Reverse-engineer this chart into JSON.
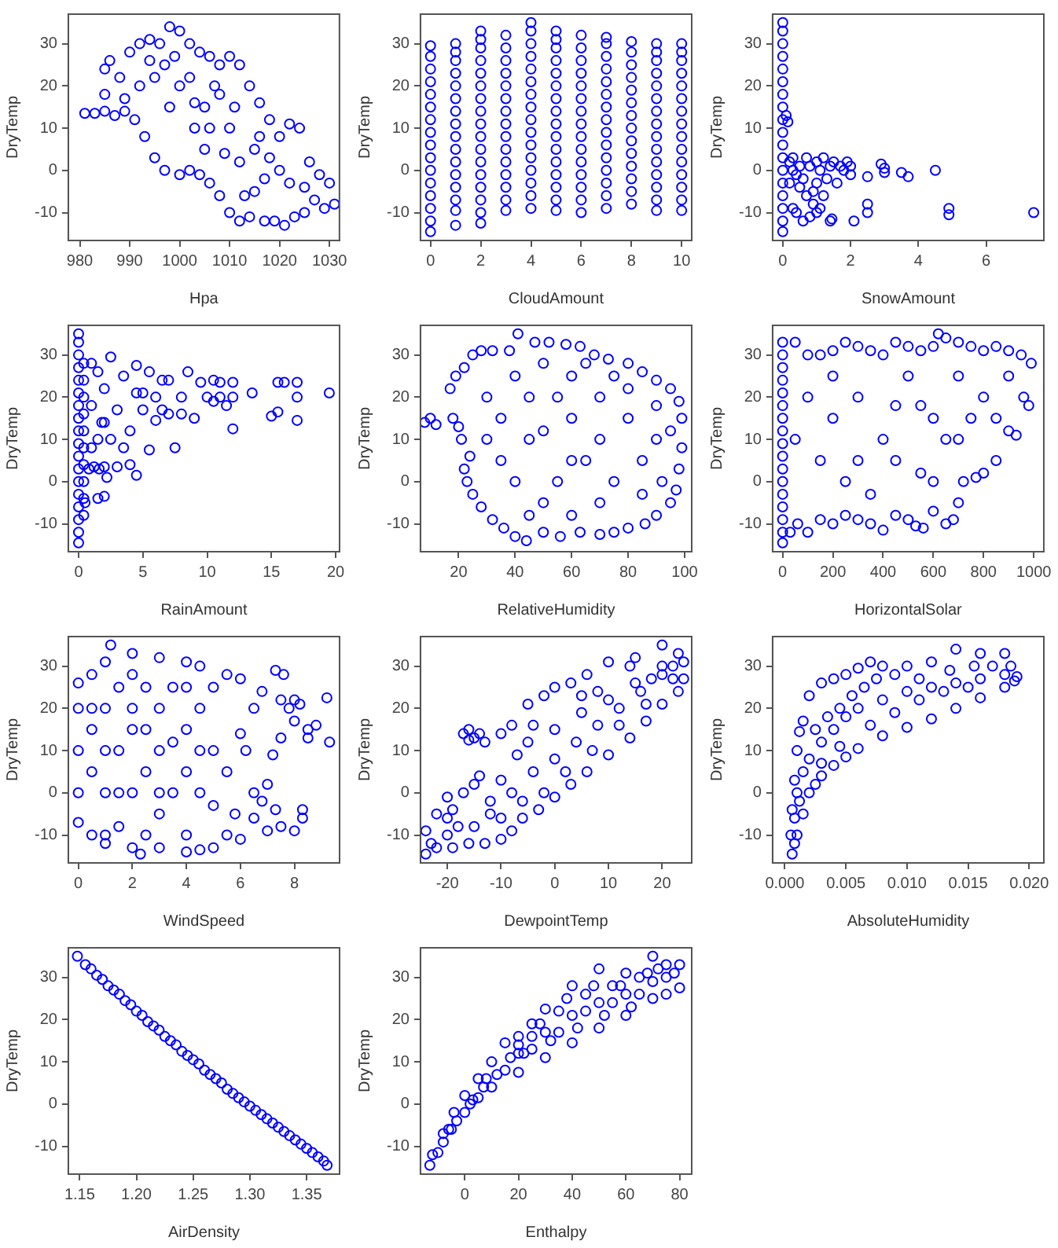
{
  "chart_data": [
    {
      "type": "scatter",
      "xlabel": "Hpa",
      "ylabel": "DryTemp",
      "xlim": [
        977.7,
        1032
      ],
      "ylim": [
        -16.6,
        37
      ],
      "xticks": [
        980,
        990,
        1000,
        1010,
        1020,
        1030
      ],
      "yticks": [
        -10,
        0,
        10,
        20,
        30
      ],
      "marker": "circle",
      "color": "#0000ff",
      "x": [
        981,
        983,
        985,
        987,
        985,
        985,
        986,
        988,
        989,
        990,
        992,
        994,
        996,
        998,
        1000,
        1002,
        1004,
        1006,
        1008,
        1010,
        1012,
        1014,
        1016,
        1018,
        1020,
        1022,
        1024,
        1026,
        1028,
        1030,
        1031,
        1029,
        1027,
        1025,
        1023,
        1021,
        1019,
        1017,
        1014,
        1012,
        1010,
        1008,
        1006,
        1004,
        1002,
        1000,
        997,
        995,
        993,
        991,
        989,
        1000,
        1005,
        1010,
        1015,
        1020,
        995,
        1003,
        1012,
        1008,
        998,
        1015,
        1005,
        1025,
        992,
        997,
        1002,
        1007,
        1011,
        1016,
        1018,
        1022,
        1013,
        1009,
        1003,
        999,
        994,
        1006,
        1017
      ],
      "values": [
        13.5,
        13.5,
        14,
        13,
        18,
        24,
        26,
        22,
        17,
        28,
        30,
        31,
        30,
        34,
        33,
        30,
        28,
        27,
        25,
        27,
        25,
        20,
        16,
        12,
        8,
        11,
        10,
        2,
        -1,
        -3,
        -8,
        -9,
        -7,
        -10,
        -11,
        -13,
        -12,
        -12,
        -11,
        -12,
        -10,
        -6,
        -3,
        -1,
        0,
        -1,
        0,
        3,
        8,
        12,
        14,
        20,
        15,
        10,
        5,
        0,
        22,
        10,
        2,
        18,
        15,
        -5,
        5,
        -4,
        20,
        25,
        22,
        20,
        15,
        8,
        3,
        -3,
        -6,
        4,
        16,
        27,
        26,
        10,
        -2
      ]
    },
    {
      "type": "scatter",
      "xlabel": "CloudAmount",
      "ylabel": "DryTemp",
      "xlim": [
        -0.4,
        10.4
      ],
      "ylim": [
        -16.6,
        37
      ],
      "xticks": [
        0,
        2,
        4,
        6,
        8,
        10
      ],
      "yticks": [
        -10,
        0,
        10,
        20,
        30
      ],
      "marker": "circle",
      "color": "#0000ff",
      "x": [
        0,
        0,
        0,
        0,
        0,
        0,
        0,
        0,
        0,
        0,
        0,
        0,
        0,
        0,
        0,
        0,
        1,
        1,
        1,
        1,
        1,
        1,
        1,
        1,
        1,
        1,
        1,
        1,
        1,
        1,
        1,
        1,
        2,
        2,
        2,
        2,
        2,
        2,
        2,
        2,
        2,
        2,
        2,
        2,
        2,
        2,
        2,
        2,
        2,
        3,
        3,
        3,
        3,
        3,
        3,
        3,
        3,
        3,
        3,
        3,
        3,
        3,
        3,
        3,
        4,
        4,
        4,
        4,
        4,
        4,
        4,
        4,
        4,
        4,
        4,
        4,
        4,
        4,
        4,
        4,
        5,
        5,
        5,
        5,
        5,
        5,
        5,
        5,
        5,
        5,
        5,
        5,
        5,
        5,
        5,
        5,
        6,
        6,
        6,
        6,
        6,
        6,
        6,
        6,
        6,
        6,
        6,
        6,
        6,
        6,
        6,
        7,
        7,
        7,
        7,
        7,
        7,
        7,
        7,
        7,
        7,
        7,
        7,
        7,
        7,
        7,
        8,
        8,
        8,
        8,
        8,
        8,
        8,
        8,
        8,
        8,
        8,
        8,
        8,
        8,
        9,
        9,
        9,
        9,
        9,
        9,
        9,
        9,
        9,
        9,
        9,
        9,
        9,
        9,
        9,
        10,
        10,
        10,
        10,
        10,
        10,
        10,
        10,
        10,
        10,
        10,
        10,
        10,
        10,
        10
      ],
      "values": [
        -14.5,
        -12,
        -9,
        -6,
        -3,
        0,
        3,
        6,
        9,
        12,
        15,
        18,
        21,
        24,
        27,
        29.5,
        -13,
        -9.5,
        -7,
        -4,
        -1,
        2,
        5,
        8,
        11,
        14,
        17,
        20,
        23,
        26,
        28,
        30,
        -12.5,
        -10,
        -7,
        -4,
        -1,
        2,
        5,
        8,
        11,
        14,
        17,
        20,
        23,
        26,
        29,
        31,
        33,
        -9.5,
        -7,
        -4,
        -1,
        2,
        5,
        8,
        11,
        14,
        17,
        20,
        23,
        26,
        29,
        32,
        -9,
        -6,
        -3,
        0,
        3,
        6,
        9,
        12,
        15,
        18,
        21,
        24,
        27,
        30,
        33,
        35,
        -9.5,
        -7,
        -4,
        -1,
        2,
        5,
        8,
        11,
        14,
        17,
        20,
        23,
        26,
        29,
        31,
        33,
        -10,
        -7,
        -4,
        -1,
        2,
        5,
        8,
        11,
        14,
        17,
        20,
        23,
        26,
        29,
        32,
        -9,
        -6,
        -3,
        0,
        3,
        6,
        9,
        12,
        15,
        18,
        21,
        24,
        27,
        30,
        31.5,
        -8,
        -5,
        -2,
        1,
        4,
        7,
        10,
        13,
        16,
        19,
        22,
        25,
        28,
        30.5,
        -9.5,
        -7,
        -4,
        -1,
        2,
        5,
        8,
        11,
        14,
        17,
        20,
        23,
        26,
        28,
        30,
        -9.5,
        -7,
        -4,
        -1,
        2,
        5,
        8,
        11,
        14,
        17,
        20,
        23,
        26,
        28,
        30
      ]
    },
    {
      "type": "scatter",
      "xlabel": "SnowAmount",
      "ylabel": "DryTemp",
      "xlim": [
        -0.3,
        7.7
      ],
      "ylim": [
        -16.6,
        37
      ],
      "xticks": [
        0,
        2,
        4,
        6
      ],
      "yticks": [
        -10,
        0,
        10,
        20,
        30
      ],
      "marker": "circle",
      "color": "#0000ff",
      "x": [
        0,
        0,
        0,
        0,
        0,
        0,
        0,
        0,
        0,
        0,
        0,
        0,
        0,
        0,
        0,
        0,
        0,
        0,
        0.1,
        0.15,
        0.2,
        0.3,
        0.4,
        0.5,
        0.5,
        0.6,
        0.7,
        0.7,
        0.8,
        0.8,
        0.9,
        1,
        1,
        1.1,
        1.1,
        1.2,
        1.3,
        1.4,
        1.4,
        1.5,
        1.6,
        1.7,
        1.9,
        2,
        2.1,
        0.3,
        0.4,
        0.9,
        1.2,
        0.6,
        1,
        1.45,
        1.8,
        2,
        0.2,
        0.3,
        2.5,
        2.5,
        2.5,
        2.9,
        3,
        3,
        3.5,
        3.7,
        4.5,
        4.9,
        4.9,
        7.4
      ],
      "values": [
        -14.5,
        -12,
        -9,
        -6,
        -3,
        0,
        3,
        6,
        9,
        12,
        15,
        18,
        21,
        24,
        27,
        30,
        33,
        35,
        13,
        11.5,
        2,
        -9,
        -10,
        1,
        -4,
        -2,
        3,
        -6,
        -11,
        1,
        -8,
        2,
        -3,
        -9,
        0,
        3,
        -2,
        -12,
        1,
        2,
        -3,
        1,
        2,
        1,
        -12,
        3,
        -1,
        -5,
        -6,
        -12,
        -10,
        -11.5,
        0,
        -1,
        -3,
        0,
        -1.5,
        -8,
        -10,
        1.5,
        -0.5,
        0.5,
        -0.5,
        -1.5,
        0,
        -9,
        -10.5,
        -10
      ]
    },
    {
      "type": "scatter",
      "xlabel": "RainAmount",
      "ylabel": "DryTemp",
      "xlim": [
        -0.8,
        20.3
      ],
      "ylim": [
        -16.6,
        37
      ],
      "xticks": [
        0,
        5,
        10,
        15,
        20
      ],
      "yticks": [
        -10,
        0,
        10,
        20,
        30
      ],
      "marker": "circle",
      "color": "#0000ff",
      "x": [
        0,
        0,
        0,
        0,
        0,
        0,
        0,
        0,
        0,
        0,
        0,
        0,
        0,
        0,
        0,
        0,
        0,
        0,
        0.4,
        0.4,
        0.4,
        0.4,
        0.4,
        0.4,
        0.4,
        0.4,
        0.4,
        0.4,
        0.8,
        1.2,
        1.6,
        2,
        19.5,
        17,
        17,
        17,
        16,
        15.5,
        15.5,
        15,
        13.5,
        12,
        12,
        12,
        11.5,
        11,
        11,
        10.5,
        10,
        9.5,
        8.5,
        8,
        8,
        7.5,
        7,
        6.5,
        6,
        6,
        5.5,
        5,
        4.5,
        4.5,
        4,
        4,
        3.5,
        3,
        3,
        2.5,
        2.5,
        2,
        1.5,
        1.5,
        1,
        0.5,
        2,
        3.5,
        5,
        2.2,
        1.8,
        6.5,
        9,
        10.5,
        4.5,
        7,
        5.5,
        1,
        1.5,
        2,
        1
      ],
      "values": [
        -14.5,
        -12,
        -9,
        -6,
        -3,
        0,
        3,
        6,
        9,
        12,
        15,
        18,
        21,
        24,
        27,
        30,
        33,
        35,
        -8,
        -4,
        0,
        4,
        8,
        12,
        16,
        20,
        24,
        28,
        3,
        3.5,
        3,
        3.5,
        21,
        23.5,
        20,
        14.5,
        23.5,
        23.5,
        16.5,
        15.5,
        21,
        23.5,
        20,
        12.5,
        18,
        23.5,
        20,
        19,
        20,
        23.5,
        26,
        20,
        16,
        8,
        16,
        17,
        20,
        14.5,
        26,
        17,
        27.5,
        1.5,
        12,
        4,
        25,
        17,
        3.5,
        29.5,
        10,
        -3.5,
        26,
        -4,
        28,
        -5,
        22,
        8,
        21,
        1,
        14,
        24,
        15,
        24,
        21,
        24,
        7.5,
        18,
        10,
        14,
        8
      ]
    },
    {
      "type": "scatter",
      "xlabel": "RelativeHumidity",
      "ylabel": "DryTemp",
      "xlim": [
        6.5,
        102.5
      ],
      "ylim": [
        -16.6,
        37
      ],
      "xticks": [
        20,
        40,
        60,
        80,
        100
      ],
      "yticks": [
        -10,
        0,
        10,
        20,
        30
      ],
      "marker": "circle",
      "color": "#0000ff",
      "x": [
        8,
        10,
        12,
        17,
        19,
        22,
        25,
        28,
        32,
        38,
        41,
        47,
        52,
        58,
        63,
        68,
        73,
        80,
        85,
        90,
        95,
        98,
        99,
        99,
        98,
        97,
        95,
        90,
        86,
        80,
        75,
        70,
        63,
        56,
        50,
        44,
        40,
        36,
        32,
        28,
        25,
        23,
        22,
        24,
        21,
        20,
        18,
        30,
        40,
        50,
        60,
        70,
        80,
        90,
        35,
        45,
        55,
        65,
        75,
        85,
        50,
        60,
        70,
        40,
        30,
        90,
        95,
        60,
        75,
        45,
        85,
        55,
        65,
        35,
        50,
        80,
        70,
        45,
        60,
        92
      ],
      "values": [
        14,
        15,
        13.5,
        22,
        25,
        27,
        30,
        31,
        31,
        31,
        35,
        33,
        33,
        32.5,
        32,
        30,
        29,
        28,
        26,
        24,
        22,
        19,
        15,
        8,
        3,
        -2,
        -5,
        -8,
        -10,
        -11,
        -12,
        -12.5,
        -12,
        -13,
        -12,
        -14,
        -13,
        -11,
        -9,
        -6,
        -3,
        0,
        3,
        6,
        10,
        13,
        15,
        20,
        25,
        28,
        25,
        20,
        15,
        10,
        5,
        10,
        0,
        5,
        0,
        5,
        -5,
        -8,
        -5,
        0,
        10,
        18,
        12,
        15,
        25,
        20,
        -3,
        20,
        28,
        15,
        12,
        22,
        10,
        -8,
        5,
        0
      ]
    },
    {
      "type": "scatter",
      "xlabel": "HorizontalSolar",
      "ylabel": "DryTemp",
      "xlim": [
        -40,
        1040
      ],
      "ylim": [
        -16.6,
        37
      ],
      "xticks": [
        0,
        200,
        400,
        600,
        800,
        1000
      ],
      "yticks": [
        -10,
        0,
        10,
        20,
        30
      ],
      "marker": "circle",
      "color": "#0000ff",
      "x": [
        0,
        0,
        0,
        0,
        0,
        0,
        0,
        0,
        0,
        0,
        0,
        0,
        0,
        0,
        0,
        0,
        0,
        30,
        60,
        100,
        150,
        200,
        250,
        300,
        350,
        400,
        450,
        500,
        530,
        560,
        600,
        650,
        680,
        700,
        720,
        770,
        800,
        850,
        900,
        930,
        960,
        980,
        990,
        950,
        900,
        850,
        800,
        750,
        700,
        650,
        620,
        600,
        550,
        500,
        450,
        400,
        350,
        300,
        250,
        200,
        150,
        100,
        50,
        200,
        300,
        400,
        500,
        600,
        700,
        800,
        900,
        150,
        250,
        350,
        450,
        550,
        650,
        750,
        850,
        100,
        550,
        450,
        300,
        600,
        200,
        700,
        50
      ],
      "values": [
        -14.5,
        -12,
        -9,
        -6,
        -3,
        0,
        3,
        6,
        9,
        12,
        15,
        18,
        21,
        24,
        27,
        30,
        33,
        -12,
        -10,
        -12,
        -9,
        -10,
        -8,
        -9,
        -10,
        -11.5,
        -8,
        -9,
        -10.5,
        -11,
        -7,
        -10,
        -9,
        -5,
        0,
        1,
        2,
        5,
        12,
        11,
        20,
        18,
        28,
        30,
        31,
        32,
        31,
        32,
        33,
        34,
        35,
        32,
        31,
        32,
        33,
        30,
        31,
        32,
        33,
        31,
        30,
        30,
        33,
        15,
        20,
        10,
        25,
        15,
        25,
        20,
        25,
        5,
        0,
        -3,
        5,
        2,
        10,
        15,
        15,
        20,
        18,
        18,
        5,
        0,
        25,
        10,
        10
      ]
    },
    {
      "type": "scatter",
      "xlabel": "WindSpeed",
      "ylabel": "DryTemp",
      "xlim": [
        -0.37,
        9.67
      ],
      "ylim": [
        -16.6,
        37
      ],
      "xticks": [
        0,
        2,
        4,
        6,
        8
      ],
      "yticks": [
        -10,
        0,
        10,
        20,
        30
      ],
      "marker": "circle",
      "color": "#0000ff",
      "x": [
        0,
        0.5,
        1,
        1.2,
        2,
        3,
        4,
        4.5,
        5.5,
        6,
        0,
        0.5,
        1,
        2,
        2.3,
        3,
        4,
        4.5,
        5,
        5.5,
        6,
        6.5,
        7,
        7.5,
        8,
        8.3,
        8.3,
        7.3,
        6.8,
        7,
        7.5,
        7.5,
        7.3,
        7.6,
        8,
        8.2,
        8.5,
        8.5,
        8.8,
        9.3,
        9.2,
        8,
        6.5,
        6.2,
        6,
        5.5,
        6.5,
        7.8,
        6.8,
        7.2,
        5.8,
        0,
        0,
        0,
        0.5,
        0.5,
        1,
        1,
        1.5,
        1.5,
        1.5,
        2,
        2,
        2.5,
        2.5,
        2.5,
        3,
        3,
        3,
        3.5,
        3.5,
        4,
        4,
        4,
        4.5,
        4.5,
        5,
        5,
        5,
        1,
        2,
        1,
        2,
        3,
        4,
        3.5,
        2.5,
        1.5,
        0.5,
        4.5
      ],
      "values": [
        26,
        28,
        31,
        35,
        33,
        32,
        31,
        30,
        28,
        27,
        -7,
        -10,
        -12,
        -13,
        -14.5,
        -13,
        -14,
        -13.5,
        -13,
        -10,
        -11,
        -6,
        -9,
        -8,
        -9,
        -6,
        -4,
        -4,
        -2,
        2,
        13,
        22,
        29,
        28,
        22,
        21,
        15,
        13,
        16,
        12,
        22.5,
        17,
        20,
        10,
        14,
        5,
        0,
        20,
        24,
        9,
        -5,
        20,
        10,
        0,
        15,
        5,
        20,
        0,
        25,
        10,
        -8,
        15,
        0,
        25,
        5,
        -10,
        20,
        10,
        -5,
        25,
        0,
        15,
        5,
        -10,
        20,
        0,
        10,
        -3,
        25,
        -10,
        28,
        10,
        20,
        0,
        25,
        12,
        15,
        0,
        20,
        10
      ]
    },
    {
      "type": "scatter",
      "xlabel": "DewpointTemp",
      "ylabel": "DryTemp",
      "xlim": [
        -25,
        25.5
      ],
      "ylim": [
        -16.6,
        37
      ],
      "xticks": [
        -20,
        -10,
        0,
        10,
        20
      ],
      "yticks": [
        -10,
        0,
        10,
        20,
        30
      ],
      "marker": "circle",
      "color": "#0000ff",
      "x": [
        -24,
        -22,
        -20,
        -17,
        -15,
        -16,
        -17,
        -15,
        -13,
        -10,
        -8,
        -5,
        -2,
        0,
        3,
        6,
        10,
        15,
        20,
        23,
        24,
        24,
        23,
        20,
        17,
        14,
        10,
        6,
        3,
        0,
        -3,
        -6,
        -8,
        -10,
        -13,
        -16,
        -19,
        -22,
        -24,
        -23,
        -18,
        -12,
        -8,
        -4,
        0,
        4,
        8,
        12,
        16,
        20,
        -10,
        -5,
        0,
        5,
        10,
        15,
        20,
        -15,
        -20,
        -14,
        2,
        7,
        12,
        17,
        22,
        -6,
        -2,
        -12,
        -19,
        -7,
        5,
        14,
        -16,
        -14,
        -4,
        8,
        18,
        22,
        -10,
        -20
      ],
      "values": [
        -9,
        -5,
        -1,
        0,
        2,
        15,
        14,
        13,
        12,
        14,
        16,
        21,
        23,
        25,
        26,
        28,
        31,
        32,
        35,
        33,
        31,
        27,
        24,
        21,
        17,
        13,
        9,
        5,
        2,
        -1,
        -4,
        -6,
        -9,
        -11,
        -12,
        -12,
        -13,
        -13,
        -14.5,
        -12,
        -8,
        -5,
        0,
        5,
        8,
        12,
        16,
        20,
        24,
        28,
        3,
        12,
        15,
        19,
        22,
        26,
        30,
        -8,
        -10,
        4,
        5,
        10,
        16,
        21,
        27,
        -2,
        0,
        -2,
        -4,
        9,
        23,
        30,
        12.5,
        14,
        16,
        24,
        27,
        30,
        -6,
        -6
      ]
    },
    {
      "type": "scatter",
      "xlabel": "AbsoluteHumidity",
      "ylabel": "DryTemp",
      "xlim": [
        -0.001,
        0.0212
      ],
      "ylim": [
        -16.6,
        37
      ],
      "xticks": [
        {
          "value": 0,
          "label": "0.000"
        },
        {
          "value": 0.005,
          "label": "0.005"
        },
        {
          "value": 0.01,
          "label": "0.010"
        },
        {
          "value": 0.015,
          "label": "0.015"
        },
        {
          "value": 0.02,
          "label": "0.020"
        }
      ],
      "yticks": [
        -10,
        0,
        10,
        20,
        30
      ],
      "marker": "circle",
      "color": "#0000ff",
      "x": [
        0.0006,
        0.001,
        0.0015,
        0.002,
        0.003,
        0.004,
        0.005,
        0.006,
        0.008,
        0.01,
        0.012,
        0.014,
        0.016,
        0.018,
        0.0188,
        0.0005,
        0.0006,
        0.0008,
        0.001,
        0.0012,
        0.0015,
        0.002,
        0.003,
        0.004,
        0.005,
        0.006,
        0.007,
        0.008,
        0.01,
        0.012,
        0.014,
        0.016,
        0.018,
        0.0185,
        0.019,
        0.001,
        0.0015,
        0.002,
        0.003,
        0.004,
        0.005,
        0.006,
        0.008,
        0.01,
        0.012,
        0.014,
        0.016,
        0.018,
        0.0008,
        0.0012,
        0.0025,
        0.0035,
        0.007,
        0.009,
        0.011,
        0.013,
        0.015,
        0.017,
        0.0045,
        0.0055,
        0.0065,
        0.0075,
        0.009,
        0.011,
        0.0135,
        0.0155,
        0.003,
        0.0025,
        0.0045,
        0.0008
      ],
      "values": [
        -14.5,
        -10,
        -5,
        0,
        4,
        6.5,
        8.5,
        10.5,
        13.5,
        15.5,
        17.5,
        20,
        22.5,
        25,
        26.5,
        -10,
        -4,
        3,
        10,
        14.5,
        17,
        23,
        26,
        27,
        28,
        29.5,
        31,
        30,
        30,
        31,
        34,
        33,
        33,
        30,
        27.5,
        0,
        5,
        8,
        12,
        15,
        18,
        20,
        22,
        24,
        25,
        26,
        27,
        28,
        -6,
        -2,
        15,
        18,
        16,
        19,
        22,
        24,
        25,
        30,
        20,
        23,
        25,
        27,
        28,
        27,
        29,
        30,
        7,
        2,
        11,
        -12
      ]
    },
    {
      "type": "scatter",
      "xlabel": "AirDensity",
      "ylabel": "DryTemp",
      "xlim": [
        1.14,
        1.379
      ],
      "ylim": [
        -16.6,
        37
      ],
      "xticks": [
        1.15,
        {
          "value": 1.2,
          "label": "1.20"
        },
        1.25,
        {
          "value": 1.3,
          "label": "1.30"
        },
        1.35
      ],
      "yticks": [
        -10,
        0,
        10,
        20,
        30
      ],
      "marker": "circle",
      "color": "#0000ff",
      "x": [
        1.148,
        1.155,
        1.16,
        1.165,
        1.17,
        1.175,
        1.18,
        1.185,
        1.19,
        1.195,
        1.2,
        1.205,
        1.21,
        1.215,
        1.22,
        1.225,
        1.23,
        1.235,
        1.24,
        1.245,
        1.25,
        1.255,
        1.26,
        1.265,
        1.27,
        1.275,
        1.28,
        1.285,
        1.29,
        1.295,
        1.3,
        1.305,
        1.31,
        1.315,
        1.32,
        1.325,
        1.33,
        1.335,
        1.34,
        1.345,
        1.35,
        1.355,
        1.36,
        1.365,
        1.368
      ],
      "values": [
        35,
        33,
        32,
        30.5,
        29.5,
        28,
        27,
        26,
        24.5,
        23.5,
        22,
        21,
        19.5,
        18.5,
        17.5,
        16,
        15,
        14,
        12.5,
        11.5,
        10.5,
        9.5,
        8,
        7,
        6,
        5,
        3.5,
        2.5,
        1.5,
        0.5,
        -0.5,
        -1.5,
        -2.5,
        -3.5,
        -4.5,
        -5.5,
        -6.5,
        -7.5,
        -8.5,
        -9.5,
        -10.5,
        -11.5,
        -12.5,
        -13.5,
        -14.5
      ]
    },
    {
      "type": "scatter",
      "xlabel": "Enthalpy",
      "ylabel": "DryTemp",
      "xlim": [
        -16.5,
        84.5
      ],
      "ylim": [
        -16.6,
        37
      ],
      "xticks": [
        0,
        20,
        40,
        60,
        80
      ],
      "yticks": [
        -10,
        0,
        10,
        20,
        30
      ],
      "marker": "circle",
      "color": "#0000ff",
      "x": [
        -13,
        -10,
        -5,
        0,
        5,
        10,
        20,
        30,
        40,
        50,
        60,
        70,
        75,
        80,
        -12,
        -8,
        -4,
        0,
        5,
        10,
        15,
        20,
        25,
        30,
        40,
        50,
        60,
        70,
        75,
        80,
        15,
        20,
        25,
        30,
        35,
        40,
        45,
        50,
        55,
        60,
        65,
        70,
        25,
        35,
        45,
        55,
        65,
        75,
        -8,
        -3,
        2,
        7,
        12,
        8,
        3,
        -6,
        17,
        22,
        32,
        42,
        52,
        62,
        38,
        48,
        58,
        68,
        28,
        20,
        78,
        72
      ],
      "values": [
        -14.5,
        -11.5,
        -6,
        -2,
        1.5,
        4,
        7.5,
        11,
        14.5,
        18,
        21,
        25,
        26,
        27.5,
        -12,
        -7,
        -2,
        2,
        6,
        10,
        14.5,
        16,
        19,
        22.5,
        28,
        32,
        31,
        35,
        33,
        33,
        8,
        12,
        13,
        17,
        17,
        21,
        22,
        24,
        24,
        26,
        26,
        29,
        16,
        22,
        26,
        28,
        30,
        30,
        -9,
        -4,
        0,
        4,
        7,
        6,
        1,
        -6,
        11,
        12,
        15,
        18,
        21,
        23,
        25,
        28,
        28,
        31,
        19,
        14,
        31,
        32
      ]
    }
  ]
}
